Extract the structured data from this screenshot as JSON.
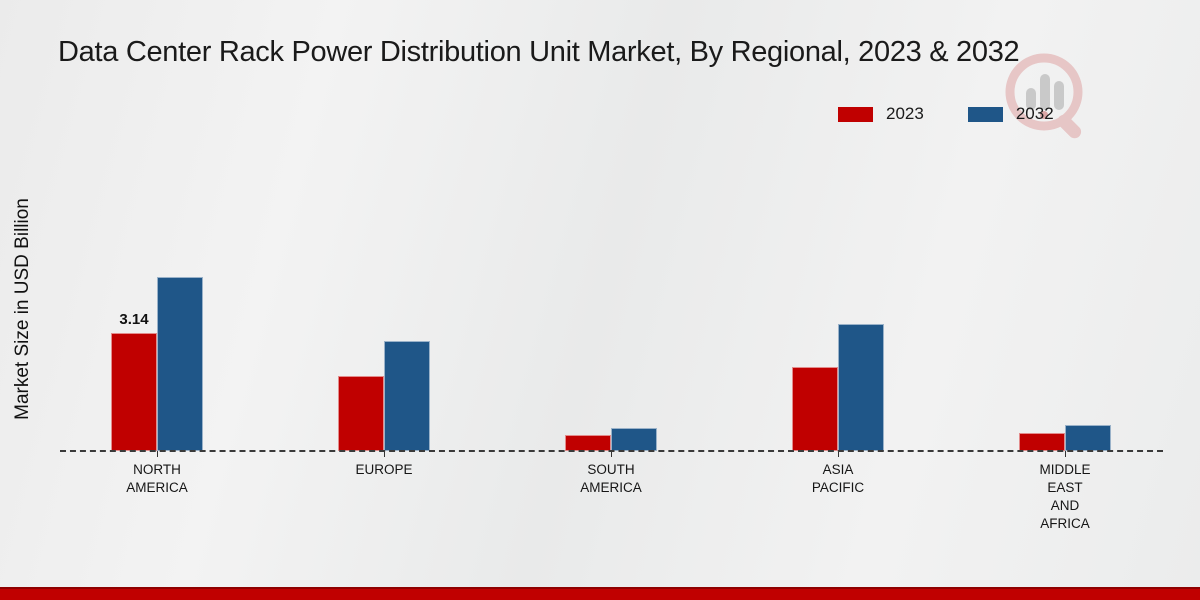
{
  "title": "Data Center Rack Power Distribution Unit Market, By Regional, 2023 & 2032",
  "y_axis_label": "Market Size in USD Billion",
  "legend": {
    "items": [
      {
        "label": "2023",
        "color": "#c00000"
      },
      {
        "label": "2032",
        "color": "#1f5688"
      }
    ]
  },
  "watermark_icon": "magnifier-bar-chart-logo",
  "colors": {
    "accent_red": "#c00000",
    "accent_blue": "#1f5688",
    "banner_red": "#c00000",
    "text": "#1a1a1a"
  },
  "chart_data": {
    "type": "bar",
    "title": "Data Center Rack Power Distribution Unit Market, By Regional, 2023 & 2032",
    "xlabel": "",
    "ylabel": "Market Size in USD Billion",
    "ylim": [
      0,
      5
    ],
    "grid": false,
    "legend_position": "top-right",
    "baseline_style": "dashed",
    "categories": [
      "NORTH\nAMERICA",
      "EUROPE",
      "SOUTH\nAMERICA",
      "ASIA\nPACIFIC",
      "MIDDLE\nEAST\nAND\nAFRICA"
    ],
    "category_names": [
      "north-america",
      "europe",
      "south-america",
      "asia-pacific",
      "middle-east-and-africa"
    ],
    "series": [
      {
        "name": "2023",
        "color": "#c00000",
        "values": [
          3.14,
          2.0,
          0.43,
          2.24,
          0.48
        ]
      },
      {
        "name": "2032",
        "color": "#1f5688",
        "values": [
          4.63,
          2.93,
          0.61,
          3.38,
          0.69
        ]
      }
    ],
    "value_labels": [
      {
        "series_index": 0,
        "category_index": 0,
        "text": "3.14"
      }
    ]
  }
}
